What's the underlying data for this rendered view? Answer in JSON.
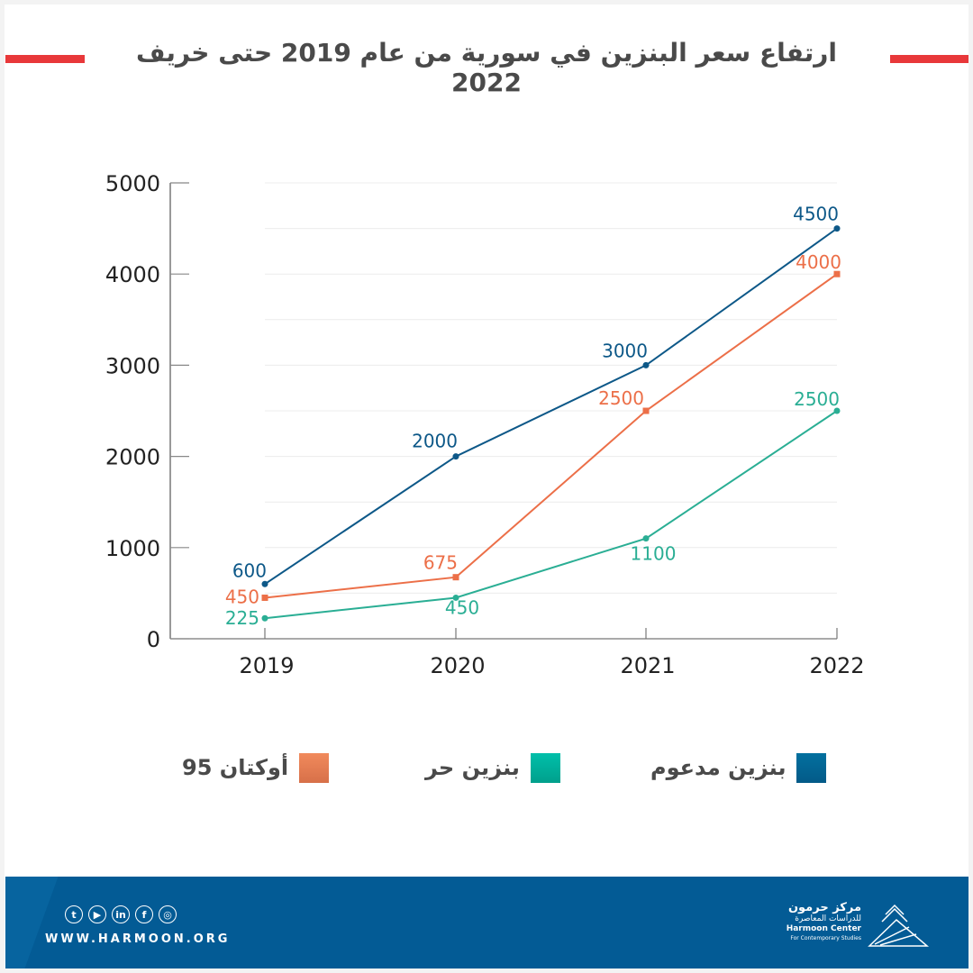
{
  "title": "ارتفاع سعر البنزين في سورية من عام 2019 حتى خريف 2022",
  "colors": {
    "accent_red": "#e8383a",
    "subsidized": "#0d5888",
    "free": "#2aae94",
    "octane": "#ec6f48",
    "footer_bg": "#035b95",
    "text": "#4a4a4a"
  },
  "chart_data": {
    "type": "line",
    "title": "ارتفاع سعر البنزين في سورية من عام 2019 حتى خريف 2022",
    "xlabel": "",
    "ylabel": "",
    "x": [
      "2019",
      "2020",
      "2021",
      "2022"
    ],
    "ylim": [
      0,
      5000
    ],
    "yticks": [
      0,
      1000,
      2000,
      3000,
      4000,
      5000
    ],
    "grid": true,
    "legend_position": "bottom",
    "series": [
      {
        "name": "بنزين مدعوم",
        "key": "subsidized",
        "color": "#0d5888",
        "marker": "circle",
        "values": [
          600,
          2000,
          3000,
          4500
        ]
      },
      {
        "name": "أوكتان 95",
        "key": "octane",
        "color": "#ec6f48",
        "marker": "square",
        "values": [
          450,
          675,
          2500,
          4000
        ]
      },
      {
        "name": "بنزين حر",
        "key": "free",
        "color": "#2aae94",
        "marker": "circle",
        "values": [
          225,
          450,
          1100,
          2500
        ]
      }
    ]
  },
  "legend": [
    {
      "label": "بنزين مدعوم",
      "color_top": "#03709f",
      "color_bottom": "#035a88"
    },
    {
      "label": "بنزين حر",
      "color_top": "#00bfaa",
      "color_bottom": "#00a08c"
    },
    {
      "label": "أوكتان 95",
      "color_top": "#f18a5c",
      "color_bottom": "#d77049"
    }
  ],
  "footer": {
    "social": [
      {
        "name": "twitter",
        "glyph": "t"
      },
      {
        "name": "youtube",
        "glyph": "▶"
      },
      {
        "name": "linkedin",
        "glyph": "in"
      },
      {
        "name": "facebook",
        "glyph": "f"
      },
      {
        "name": "instagram",
        "glyph": "◎"
      }
    ],
    "url": "WWW.HARMOON.ORG",
    "brand_ar_1": "مركز حرمون",
    "brand_ar_2": "للدراسات المعاصرة",
    "brand_en_1": "Harmoon Center",
    "brand_en_2": "For Contemporary Studies"
  }
}
